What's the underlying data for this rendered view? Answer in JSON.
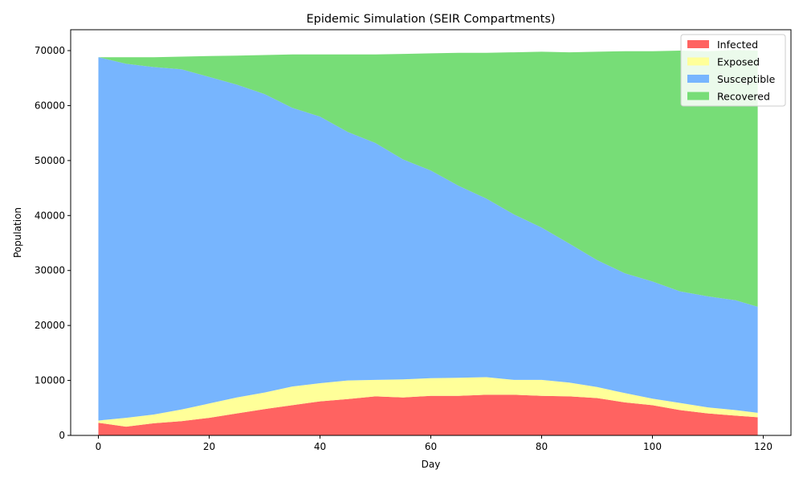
{
  "chart_data": {
    "type": "area",
    "stacked": true,
    "title": "Epidemic Simulation (SEIR Compartments)",
    "xlabel": "Day",
    "ylabel": "Population",
    "xlim": [
      -5,
      125
    ],
    "ylim": [
      0,
      73800
    ],
    "xticks": [
      0,
      20,
      40,
      60,
      80,
      100,
      120
    ],
    "yticks": [
      0,
      10000,
      20000,
      30000,
      40000,
      50000,
      60000,
      70000
    ],
    "grid": false,
    "legend_position": "top-right",
    "x": [
      0,
      5,
      10,
      15,
      20,
      25,
      30,
      35,
      40,
      45,
      50,
      55,
      60,
      65,
      70,
      75,
      80,
      85,
      90,
      95,
      100,
      105,
      110,
      115,
      119
    ],
    "series": [
      {
        "name": "Infected",
        "color": "#ff6361",
        "values": [
          2300,
          1600,
          2200,
          2600,
          3200,
          4000,
          4800,
          5500,
          6200,
          6600,
          7100,
          6900,
          7200,
          7200,
          7400,
          7400,
          7200,
          7100,
          6800,
          6000,
          5500,
          4600,
          4000,
          3600,
          3300
        ]
      },
      {
        "name": "Exposed",
        "color": "#ffff99",
        "values": [
          400,
          1600,
          1600,
          2100,
          2600,
          2900,
          3000,
          3400,
          3300,
          3400,
          3000,
          3300,
          3200,
          3300,
          3200,
          2700,
          2900,
          2500,
          2000,
          1700,
          1200,
          1300,
          1100,
          1000,
          800
        ]
      },
      {
        "name": "Susceptible",
        "color": "#77b5fe",
        "values": [
          66100,
          64400,
          63200,
          61900,
          59400,
          56900,
          54300,
          50700,
          48500,
          45200,
          43100,
          40000,
          37800,
          34900,
          32500,
          30100,
          27700,
          25300,
          23100,
          21800,
          21300,
          20300,
          20200,
          20000,
          19300
        ]
      },
      {
        "name": "Recovered",
        "color": "#77dd77",
        "values": [
          0,
          1200,
          1800,
          2300,
          3800,
          5300,
          7100,
          9700,
          11300,
          14100,
          16100,
          19200,
          21300,
          24200,
          26500,
          29500,
          32000,
          34800,
          37900,
          40400,
          41900,
          43800,
          44600,
          45500,
          46600
        ]
      }
    ]
  }
}
